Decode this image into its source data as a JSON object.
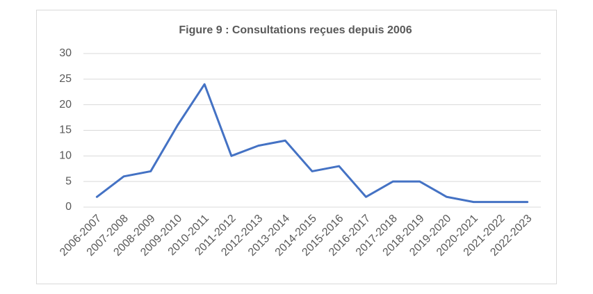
{
  "chart_data": {
    "type": "line",
    "title": "Figure 9 : Consultations reçues depuis 2006",
    "categories": [
      "2006-2007",
      "2007-2008",
      "2008-2009",
      "2009-2010",
      "2010-2011",
      "2011-2012",
      "2012-2013",
      "2013-2014",
      "2014-2015",
      "2015-2016",
      "2016-2017",
      "2017-2018",
      "2018-2019",
      "2019-2020",
      "2020-2021",
      "2021-2022",
      "2022-2023"
    ],
    "values": [
      2,
      6,
      7,
      16,
      24,
      10,
      12,
      13,
      7,
      8,
      2,
      5,
      5,
      2,
      1,
      1,
      1
    ],
    "color": "#4472c4",
    "ylim": [
      0,
      30
    ],
    "yticks": [
      0,
      5,
      10,
      15,
      20,
      25,
      30
    ],
    "grid": true
  }
}
